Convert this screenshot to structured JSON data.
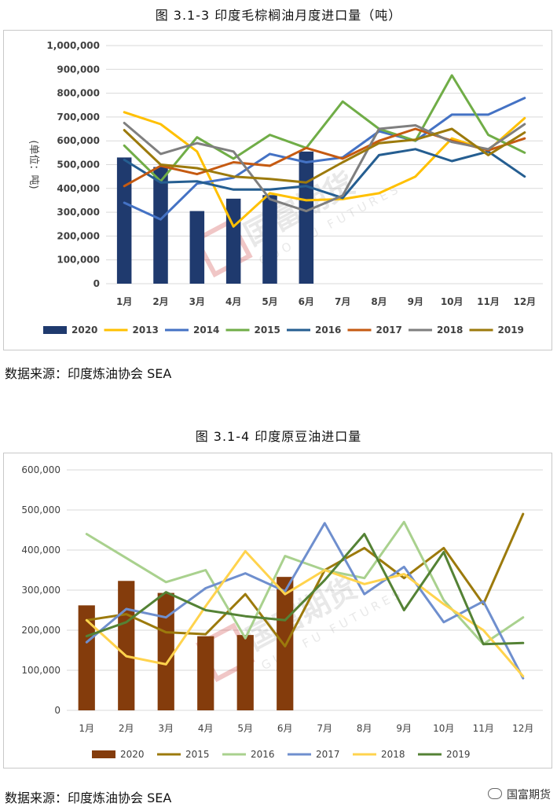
{
  "charts": [
    {
      "caption": "图 3.1-3 印度毛棕榈油月度进口量（吨）",
      "source": "数据来源：印度炼油协会 SEA",
      "watermark": {
        "cn": "国富期货",
        "en": "GUO FU FUTURES"
      },
      "chart_data": {
        "type": "bar+line",
        "title": "",
        "ylabel": "(单位：吨)",
        "ylim": [
          0,
          1000000
        ],
        "yticks": [
          "0",
          "100,000",
          "200,000",
          "300,000",
          "400,000",
          "500,000",
          "600,000",
          "700,000",
          "800,000",
          "900,000",
          "1,000,000"
        ],
        "categories": [
          "1月",
          "2月",
          "3月",
          "4月",
          "5月",
          "6月",
          "7月",
          "8月",
          "9月",
          "10月",
          "11月",
          "12月"
        ],
        "grid": true,
        "legend_position": "bottom",
        "bar_series": {
          "name": "2020",
          "color": "#1f3a6e",
          "values": [
            530000,
            490000,
            305000,
            357000,
            372000,
            555000
          ]
        },
        "line_series": [
          {
            "name": "2013",
            "color": "#ffc000",
            "values": [
              720000,
              670000,
              555000,
              240000,
              380000,
              350000,
              355000,
              380000,
              450000,
              610000,
              560000,
              695000
            ]
          },
          {
            "name": "2014",
            "color": "#4472c4",
            "values": [
              340000,
              270000,
              420000,
              445000,
              545000,
              510000,
              530000,
              640000,
              600000,
              710000,
              710000,
              780000
            ]
          },
          {
            "name": "2015",
            "color": "#70ad47",
            "values": [
              580000,
              430000,
              615000,
              525000,
              625000,
              570000,
              765000,
              650000,
              600000,
              875000,
              625000,
              550000
            ]
          },
          {
            "name": "2016",
            "color": "#255e91",
            "values": [
              520000,
              425000,
              430000,
              395000,
              395000,
              410000,
              360000,
              540000,
              565000,
              515000,
              555000,
              450000
            ]
          },
          {
            "name": "2017",
            "color": "#c55a11",
            "values": [
              410000,
              495000,
              460000,
              510000,
              495000,
              570000,
              525000,
              600000,
              650000,
              600000,
              560000,
              610000
            ]
          },
          {
            "name": "2018",
            "color": "#7f7f7f",
            "values": [
              675000,
              545000,
              590000,
              555000,
              355000,
              305000,
              370000,
              650000,
              665000,
              595000,
              565000,
              670000
            ]
          },
          {
            "name": "2019",
            "color": "#9c7a0c",
            "values": [
              645000,
              500000,
              485000,
              450000,
              440000,
              425000,
              510000,
              590000,
              605000,
              650000,
              540000,
              635000
            ]
          }
        ]
      }
    },
    {
      "caption": "图 3.1-4 印度原豆油进口量",
      "source": "数据来源：印度炼油协会 SEA",
      "watermark": {
        "cn": "国富期货",
        "en": "GUO FU FUTURES"
      },
      "chart_data": {
        "type": "bar+line",
        "title": "",
        "ylabel": "",
        "ylim": [
          0,
          600000
        ],
        "yticks": [
          "0",
          "100,000",
          "200,000",
          "300,000",
          "400,000",
          "500,000",
          "600,000"
        ],
        "categories": [
          "1月",
          "2月",
          "3月",
          "4月",
          "5月",
          "6月",
          "7月",
          "8月",
          "9月",
          "10月",
          "11月",
          "12月"
        ],
        "grid": true,
        "legend_position": "bottom",
        "bar_series": {
          "name": "2020",
          "color": "#843c0c",
          "values": [
            262000,
            323000,
            293000,
            185000,
            188000,
            333000
          ]
        },
        "line_series": [
          {
            "name": "2015",
            "color": "#9c7a0c",
            "values": [
              225000,
              240000,
              195000,
              190000,
              290000,
              160000,
              350000,
              405000,
              330000,
              405000,
              265000,
              490000
            ]
          },
          {
            "name": "2016",
            "color": "#a9d18e",
            "values": [
              440000,
              380000,
              320000,
              350000,
              180000,
              385000,
              350000,
              330000,
              470000,
              275000,
              165000,
              232000
            ]
          },
          {
            "name": "2017",
            "color": "#6f8fce",
            "values": [
              170000,
              253000,
              232000,
              305000,
              342000,
              297000,
              467000,
              290000,
              358000,
              220000,
              272000,
              80000
            ]
          },
          {
            "name": "2018",
            "color": "#ffd34d",
            "values": [
              225000,
              135000,
              115000,
              260000,
              397000,
              290000,
              350000,
              315000,
              340000,
              265000,
              200000,
              85000
            ]
          },
          {
            "name": "2019",
            "color": "#548235",
            "values": [
              185000,
              220000,
              295000,
              250000,
              235000,
              225000,
              325000,
              440000,
              250000,
              395000,
              165000,
              168000
            ]
          }
        ]
      }
    }
  ],
  "brand": "国富期货"
}
